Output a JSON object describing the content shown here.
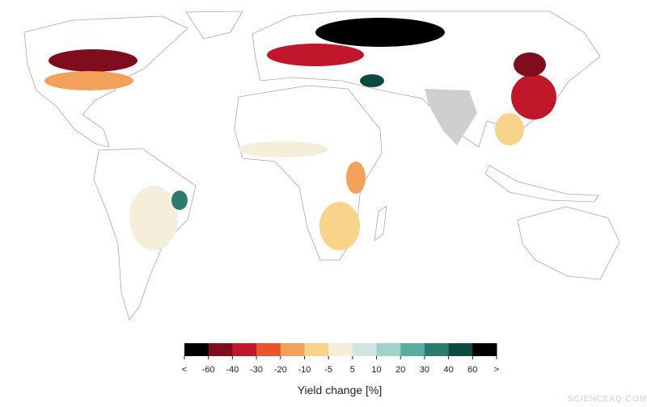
{
  "map": {
    "legend": {
      "title": "Yield change [%]",
      "labels": [
        "<",
        "-60",
        "-40",
        "-30",
        "-20",
        "-10",
        "-5",
        "5",
        "10",
        "20",
        "30",
        "40",
        "60",
        ">"
      ],
      "colors": [
        "#000000",
        "#7f0d1e",
        "#c0172a",
        "#e8552e",
        "#f3a15a",
        "#f7d48a",
        "#f4eedb",
        "#cfe6e3",
        "#9fd2c8",
        "#5aae9f",
        "#2a7d6e",
        "#0c4a3f",
        "#000000"
      ]
    }
  },
  "watermark": "SCIENCEAQ.COM"
}
